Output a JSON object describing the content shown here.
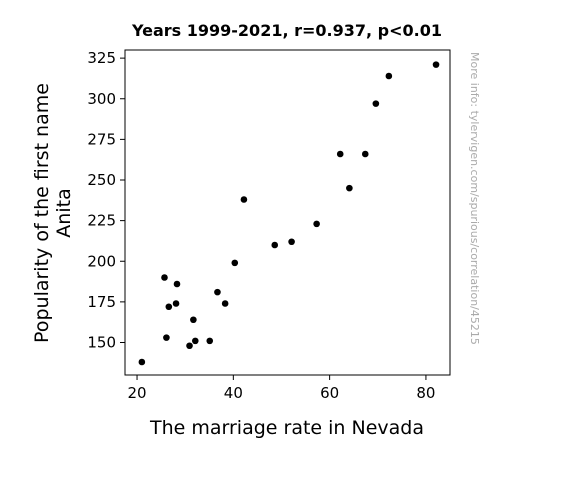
{
  "chart_data": {
    "type": "scatter",
    "title": "Years 1999-2021, r=0.937, p<0.01",
    "xlabel": "The marriage rate in Nevada",
    "ylabel_lines": [
      "Popularity of the first name",
      "Anita"
    ],
    "watermark": "More info: tylervigen.com/spurious/correlation/45215",
    "xlim": [
      17.5,
      85
    ],
    "ylim": [
      130,
      330
    ],
    "xticks": [
      20,
      40,
      60,
      80
    ],
    "yticks": [
      150,
      175,
      200,
      225,
      250,
      275,
      300,
      325
    ],
    "grid": false,
    "marker_color": "#000000",
    "points": [
      {
        "x": 21.0,
        "y": 138
      },
      {
        "x": 25.7,
        "y": 190
      },
      {
        "x": 26.1,
        "y": 153
      },
      {
        "x": 26.6,
        "y": 172
      },
      {
        "x": 28.1,
        "y": 174
      },
      {
        "x": 28.3,
        "y": 186
      },
      {
        "x": 30.9,
        "y": 148
      },
      {
        "x": 31.7,
        "y": 164
      },
      {
        "x": 32.1,
        "y": 151
      },
      {
        "x": 35.1,
        "y": 151
      },
      {
        "x": 36.7,
        "y": 181
      },
      {
        "x": 38.3,
        "y": 174
      },
      {
        "x": 40.3,
        "y": 199
      },
      {
        "x": 42.2,
        "y": 238
      },
      {
        "x": 48.6,
        "y": 210
      },
      {
        "x": 52.1,
        "y": 212
      },
      {
        "x": 57.3,
        "y": 223
      },
      {
        "x": 62.2,
        "y": 266
      },
      {
        "x": 64.1,
        "y": 245
      },
      {
        "x": 67.4,
        "y": 266
      },
      {
        "x": 69.6,
        "y": 297
      },
      {
        "x": 72.3,
        "y": 314
      },
      {
        "x": 82.1,
        "y": 321
      }
    ]
  }
}
